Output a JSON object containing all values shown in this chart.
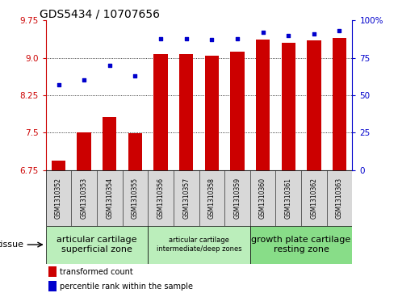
{
  "title": "GDS5434 / 10707656",
  "samples": [
    "GSM1310352",
    "GSM1310353",
    "GSM1310354",
    "GSM1310355",
    "GSM1310356",
    "GSM1310357",
    "GSM1310358",
    "GSM1310359",
    "GSM1310360",
    "GSM1310361",
    "GSM1310362",
    "GSM1310363"
  ],
  "bar_values": [
    6.93,
    7.5,
    7.82,
    7.49,
    9.07,
    9.07,
    9.05,
    9.12,
    9.37,
    9.3,
    9.35,
    9.4
  ],
  "dot_values": [
    57,
    60,
    70,
    63,
    88,
    88,
    87,
    88,
    92,
    90,
    91,
    93
  ],
  "ylim_left": [
    6.75,
    9.75
  ],
  "ylim_right": [
    0,
    100
  ],
  "yticks_left": [
    6.75,
    7.5,
    8.25,
    9.0,
    9.75
  ],
  "yticks_right": [
    0,
    25,
    50,
    75,
    100
  ],
  "bar_color": "#cc0000",
  "dot_color": "#0000cc",
  "bar_bottom": 6.75,
  "grid_lines": [
    7.5,
    8.25,
    9.0
  ],
  "tissue_groups": [
    {
      "label": "articular cartilage\nsuperficial zone",
      "indices": [
        0,
        3
      ],
      "color": "#bbeebb",
      "fontsize": 8
    },
    {
      "label": "articular cartilage\nintermediate/deep zones",
      "indices": [
        4,
        7
      ],
      "color": "#bbeebb",
      "fontsize": 6
    },
    {
      "label": "growth plate cartilage\nresting zone",
      "indices": [
        8,
        11
      ],
      "color": "#88dd88",
      "fontsize": 8
    }
  ],
  "tissue_label": "tissue",
  "legend_bar_label": "transformed count",
  "legend_dot_label": "percentile rank within the sample",
  "sample_bg_color": "#d8d8d8",
  "plot_bg": "#ffffff"
}
